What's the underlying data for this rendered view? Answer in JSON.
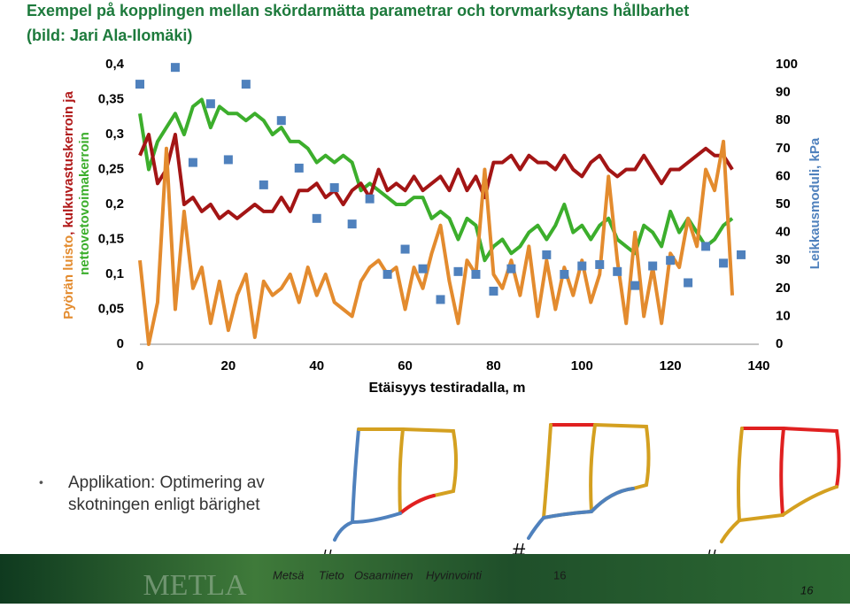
{
  "chart_data": {
    "type": "line",
    "title": "Exempel på kopplingen mellan skördarmätta parametrar och  torvmarksytans hållbarhet",
    "subtitle": "(bild: Jari Ala-Ilomäki)",
    "xlabel": "Etäisyys testiradalla, m",
    "ylabel_parts": [
      {
        "text": "Pyörän luisto",
        "color": "#e38b2e"
      },
      {
        "text": ", kulkuvastuskerroin ja",
        "color": "#b01818"
      },
      {
        "text": "nettovetovoimakerroin",
        "color": "#3cae2c"
      }
    ],
    "y2label": "Leikkausmoduli, kPa",
    "y2label_color": "#4f81bd",
    "xlim": [
      0,
      140
    ],
    "xticks": [
      0,
      20,
      40,
      60,
      80,
      100,
      120,
      140
    ],
    "ylim": [
      0,
      0.4
    ],
    "yticks": [
      0,
      {
        "value": 0.05,
        "label": "0,05"
      },
      {
        "value": 0.1,
        "label": "0,1"
      },
      {
        "value": 0.15,
        "label": "0,15"
      },
      {
        "value": 0.2,
        "label": "0,2"
      },
      {
        "value": 0.25,
        "label": "0,25"
      },
      {
        "value": 0.3,
        "label": "0,3"
      },
      {
        "value": 0.35,
        "label": "0,35"
      },
      {
        "value": 0.4,
        "label": "0,4"
      }
    ],
    "y2lim": [
      0,
      100
    ],
    "y2ticks": [
      0,
      10,
      20,
      30,
      40,
      50,
      60,
      70,
      80,
      90,
      100
    ],
    "series": [
      {
        "type": "line",
        "color": "#3cae2c",
        "x": [
          0,
          2,
          4,
          6,
          8,
          10,
          12,
          14,
          16,
          18,
          20,
          22,
          24,
          26,
          28,
          30,
          32,
          34,
          36,
          38,
          40,
          42,
          44,
          46,
          48,
          50,
          52,
          54,
          56,
          58,
          60,
          62,
          64,
          66,
          68,
          70,
          72,
          74,
          76,
          78,
          80,
          82,
          84,
          86,
          88,
          90,
          92,
          94,
          96,
          98,
          100,
          102,
          104,
          106,
          108,
          110,
          112,
          114,
          116,
          118,
          120,
          122,
          124,
          126,
          128,
          130,
          132,
          134
        ],
        "values": [
          0.33,
          0.25,
          0.29,
          0.31,
          0.33,
          0.3,
          0.34,
          0.35,
          0.31,
          0.34,
          0.33,
          0.33,
          0.32,
          0.33,
          0.32,
          0.3,
          0.31,
          0.29,
          0.29,
          0.28,
          0.26,
          0.27,
          0.26,
          0.27,
          0.26,
          0.22,
          0.23,
          0.22,
          0.21,
          0.2,
          0.2,
          0.21,
          0.21,
          0.18,
          0.19,
          0.18,
          0.15,
          0.18,
          0.17,
          0.12,
          0.14,
          0.15,
          0.13,
          0.14,
          0.16,
          0.17,
          0.15,
          0.17,
          0.2,
          0.16,
          0.17,
          0.15,
          0.17,
          0.18,
          0.15,
          0.14,
          0.13,
          0.17,
          0.16,
          0.14,
          0.19,
          0.16,
          0.18,
          0.16,
          0.14,
          0.15,
          0.17,
          0.18
        ]
      },
      {
        "type": "line",
        "color": "#a31515",
        "x": [
          0,
          2,
          4,
          6,
          8,
          10,
          12,
          14,
          16,
          18,
          20,
          22,
          24,
          26,
          28,
          30,
          32,
          34,
          36,
          38,
          40,
          42,
          44,
          46,
          48,
          50,
          52,
          54,
          56,
          58,
          60,
          62,
          64,
          66,
          68,
          70,
          72,
          74,
          76,
          78,
          80,
          82,
          84,
          86,
          88,
          90,
          92,
          94,
          96,
          98,
          100,
          102,
          104,
          106,
          108,
          110,
          112,
          114,
          116,
          118,
          120,
          122,
          124,
          126,
          128,
          130,
          132,
          134
        ],
        "values": [
          0.27,
          0.3,
          0.23,
          0.25,
          0.3,
          0.2,
          0.21,
          0.19,
          0.2,
          0.18,
          0.19,
          0.18,
          0.19,
          0.2,
          0.19,
          0.19,
          0.21,
          0.19,
          0.22,
          0.22,
          0.23,
          0.21,
          0.22,
          0.2,
          0.22,
          0.23,
          0.21,
          0.25,
          0.22,
          0.23,
          0.22,
          0.24,
          0.22,
          0.23,
          0.24,
          0.22,
          0.25,
          0.22,
          0.24,
          0.21,
          0.26,
          0.26,
          0.27,
          0.25,
          0.27,
          0.26,
          0.26,
          0.25,
          0.27,
          0.25,
          0.24,
          0.26,
          0.27,
          0.25,
          0.24,
          0.25,
          0.25,
          0.27,
          0.25,
          0.23,
          0.25,
          0.25,
          0.26,
          0.27,
          0.28,
          0.27,
          0.27,
          0.25
        ]
      },
      {
        "type": "line",
        "color": "#e38b2e",
        "x": [
          0,
          2,
          4,
          6,
          8,
          10,
          12,
          14,
          16,
          18,
          20,
          22,
          24,
          26,
          28,
          30,
          32,
          34,
          36,
          38,
          40,
          42,
          44,
          46,
          48,
          50,
          52,
          54,
          56,
          58,
          60,
          62,
          64,
          66,
          68,
          70,
          72,
          74,
          76,
          78,
          80,
          82,
          84,
          86,
          88,
          90,
          92,
          94,
          96,
          98,
          100,
          102,
          104,
          106,
          108,
          110,
          112,
          114,
          116,
          118,
          120,
          122,
          124,
          126,
          128,
          130,
          132,
          134
        ],
        "values": [
          0.12,
          0,
          0.06,
          0.28,
          0.05,
          0.19,
          0.08,
          0.11,
          0.03,
          0.09,
          0.02,
          0.07,
          0.1,
          0.01,
          0.09,
          0.07,
          0.08,
          0.1,
          0.06,
          0.11,
          0.07,
          0.1,
          0.06,
          0.05,
          0.04,
          0.09,
          0.11,
          0.12,
          0.1,
          0.11,
          0.05,
          0.11,
          0.08,
          0.13,
          0.17,
          0.09,
          0.03,
          0.12,
          0.1,
          0.25,
          0.1,
          0.08,
          0.12,
          0.07,
          0.14,
          0.04,
          0.12,
          0.05,
          0.11,
          0.07,
          0.12,
          0.06,
          0.1,
          0.24,
          0.12,
          0.03,
          0.16,
          0.04,
          0.11,
          0.03,
          0.13,
          0.11,
          0.18,
          0.14,
          0.25,
          0.22,
          0.29,
          0.07
        ]
      },
      {
        "type": "scatter",
        "color": "#4f81bd",
        "axis": "y2",
        "x": [
          0,
          8,
          12,
          16,
          20,
          24,
          28,
          32,
          36,
          40,
          44,
          48,
          52,
          56,
          60,
          64,
          68,
          72,
          76,
          80,
          84,
          92,
          96,
          100,
          104,
          108,
          112,
          116,
          120,
          124,
          128,
          132,
          136
        ],
        "values": [
          93,
          99,
          65,
          86,
          66,
          93,
          57,
          80,
          63,
          45,
          56,
          43,
          52,
          25,
          34,
          27,
          16,
          26,
          25,
          19,
          27,
          32,
          25,
          28,
          28.5,
          26,
          21,
          28,
          30,
          22,
          35,
          29,
          32
        ]
      }
    ]
  },
  "slide": {
    "bullet": [
      "Applikation: Optimering av",
      "skotningen enligt bärighet"
    ],
    "marks": [
      "#",
      "#",
      "#"
    ],
    "footer": [
      "Metsä",
      "Tieto",
      "Osaaminen",
      "Hyvinvointi"
    ],
    "logo": "METLA",
    "page": "16",
    "page_corner": "16"
  }
}
